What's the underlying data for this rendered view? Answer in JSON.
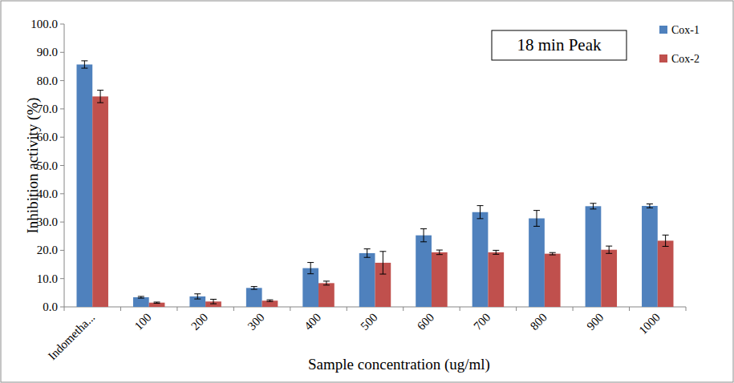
{
  "chart_data": {
    "type": "bar",
    "annotation": "18 min Peak",
    "x_label": "Sample concentration (ug/ml)",
    "y_label": "Inhibition activity (%)",
    "categories": [
      "Indometha...",
      "100",
      "200",
      "300",
      "400",
      "500",
      "600",
      "700",
      "800",
      "900",
      "1000"
    ],
    "series": [
      {
        "name": "Cox-1",
        "color": "#4f81bd",
        "values": [
          85.7,
          3.4,
          3.7,
          6.7,
          13.7,
          19.0,
          25.3,
          33.5,
          31.3,
          35.6,
          35.7
        ],
        "errors": [
          1.3,
          0.3,
          0.9,
          0.5,
          2.0,
          1.5,
          2.3,
          2.3,
          2.8,
          1.0,
          0.7
        ]
      },
      {
        "name": "Cox-2",
        "color": "#c0504d",
        "values": [
          74.4,
          1.5,
          1.9,
          2.2,
          8.4,
          15.6,
          19.3,
          19.3,
          18.8,
          20.2,
          23.4
        ],
        "errors": [
          2.2,
          0.2,
          0.8,
          0.3,
          0.7,
          4.0,
          0.8,
          0.7,
          0.4,
          1.3,
          2.0
        ]
      }
    ],
    "ylim": [
      0,
      100
    ],
    "yticks": [
      {
        "value": 0,
        "label": "0.0"
      },
      {
        "value": 10,
        "label": "10.0"
      },
      {
        "value": 20,
        "label": "20.0"
      },
      {
        "value": 30,
        "label": "30.0"
      },
      {
        "value": 40,
        "label": "40.0"
      },
      {
        "value": 50,
        "label": "50.0"
      },
      {
        "value": 60,
        "label": "60.0"
      },
      {
        "value": 70,
        "label": "70.0"
      },
      {
        "value": 80,
        "label": "80.0"
      },
      {
        "value": 90,
        "label": "90.0"
      },
      {
        "value": 100,
        "label": "100.0"
      }
    ],
    "grid": false,
    "legend": "right"
  }
}
